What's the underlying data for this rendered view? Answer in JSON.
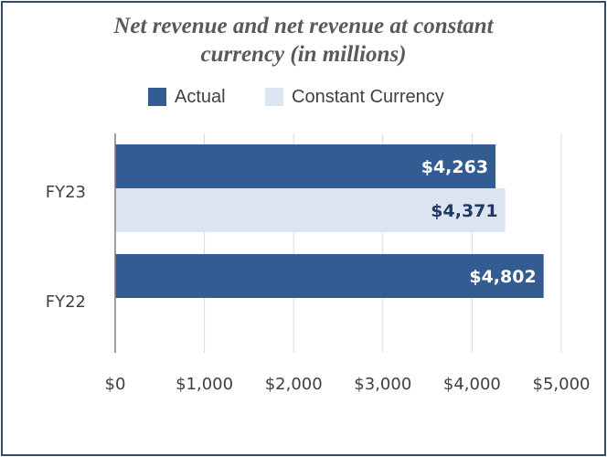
{
  "chart_data": {
    "type": "bar",
    "orientation": "horizontal",
    "title_line1": "Net revenue and net revenue at constant",
    "title_line2": "currency (in millions)",
    "categories": [
      "FY23",
      "FY22"
    ],
    "series": [
      {
        "name": "Actual",
        "color": "#335c92",
        "label_color": "#ffffff",
        "values": [
          4263,
          4802
        ],
        "labels": [
          "$4,263",
          "$4,802"
        ]
      },
      {
        "name": "Constant Currency",
        "color": "#dbe4f0",
        "label_color": "#1f3864",
        "values": [
          4371,
          null
        ],
        "labels": [
          "$4,371",
          ""
        ]
      }
    ],
    "x_ticks": [
      0,
      1000,
      2000,
      3000,
      4000,
      5000
    ],
    "x_tick_labels": [
      "$0",
      "$1,000",
      "$2,000",
      "$3,000",
      "$4,000",
      "$5,000"
    ],
    "xlim": [
      0,
      5000
    ],
    "grid": true,
    "legend_position": "top"
  },
  "colors": {
    "border": "#2f4a78",
    "grid": "#d9d9d9",
    "axis": "#7f7f7f"
  }
}
